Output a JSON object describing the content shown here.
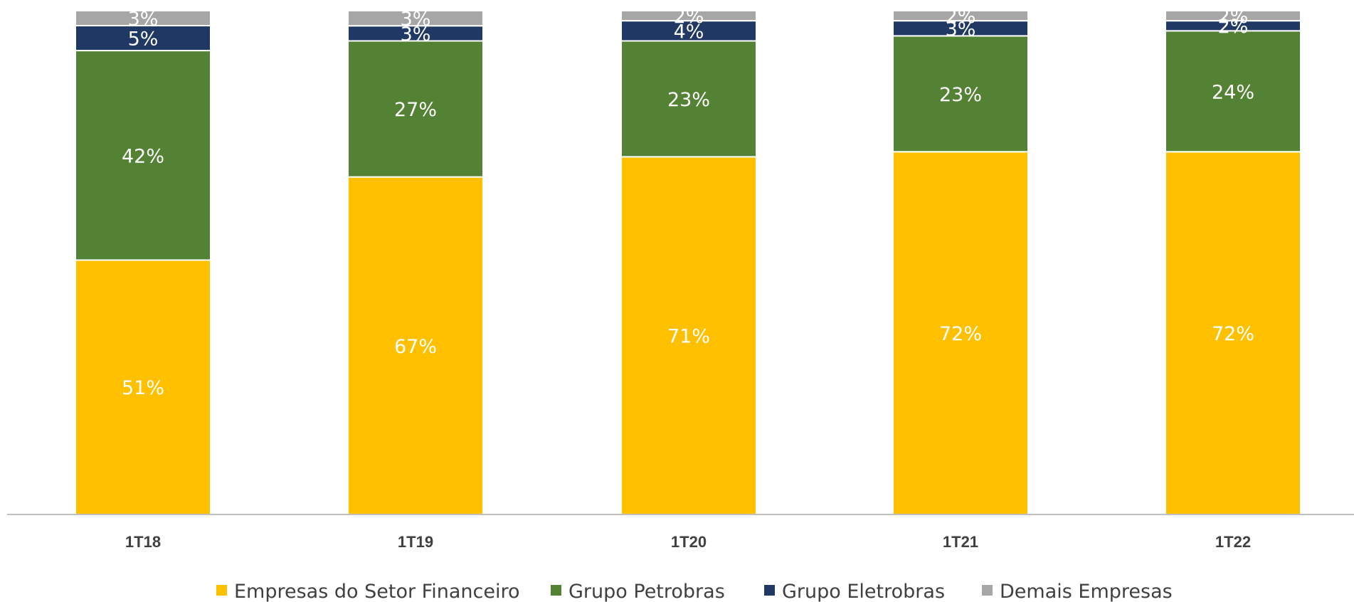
{
  "chart_data": {
    "type": "bar",
    "stacked": true,
    "normalized": true,
    "categories": [
      "1T18",
      "1T19",
      "1T20",
      "1T21",
      "1T22"
    ],
    "series": [
      {
        "name": "Empresas do Setor Financeiro",
        "color": "#FFC000",
        "values": [
          51,
          67,
          71,
          72,
          72
        ],
        "labels": [
          "51%",
          "67%",
          "71%",
          "72%",
          "72%"
        ]
      },
      {
        "name": "Grupo Petrobras",
        "color": "#548235",
        "values": [
          42,
          27,
          23,
          23,
          24
        ],
        "labels": [
          "42%",
          "27%",
          "23%",
          "23%",
          "24%"
        ]
      },
      {
        "name": "Grupo Eletrobras",
        "color": "#203864",
        "values": [
          5,
          3,
          4,
          3,
          2
        ],
        "labels": [
          "5%",
          "3%",
          "4%",
          "3%",
          "2%"
        ]
      },
      {
        "name": "Demais Empresas",
        "color": "#A6A6A6",
        "values": [
          3,
          3,
          2,
          2,
          2
        ],
        "labels": [
          "3%",
          "3%",
          "2%",
          "2%",
          "2%"
        ]
      }
    ],
    "ylim": [
      0,
      100
    ],
    "grid": false,
    "legend": "bottom"
  }
}
